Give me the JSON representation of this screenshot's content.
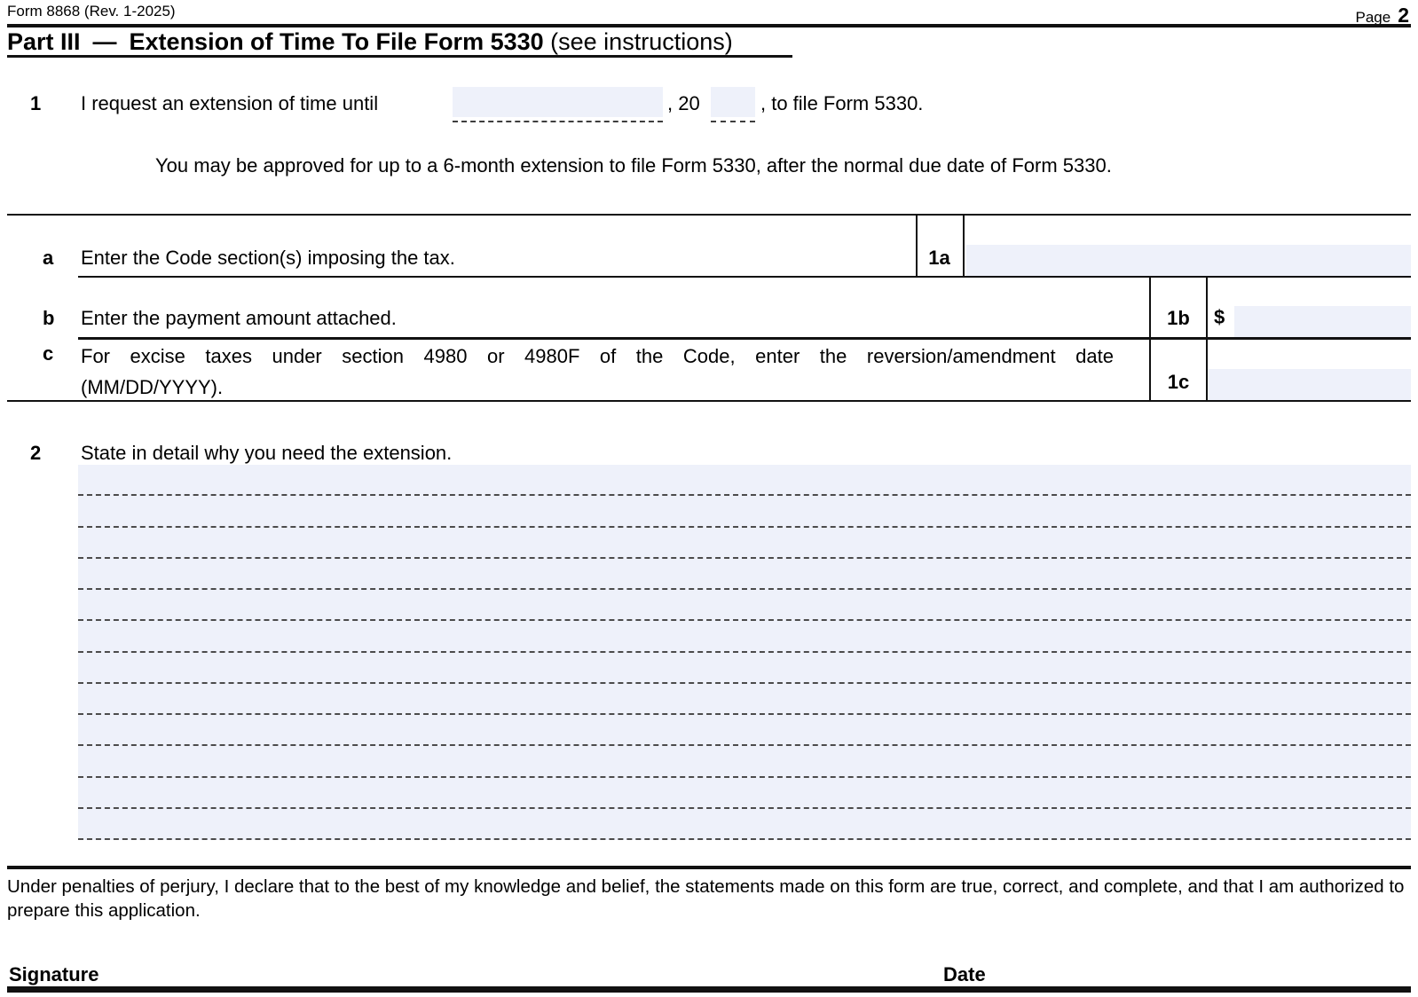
{
  "meta": {
    "form_id": "Form 8868 (Rev. 1-2025)",
    "page_label": "Page",
    "page_number": "2"
  },
  "header": {
    "part_label": "Part III",
    "dash": "—",
    "title": "Extension of Time To File Form 5330",
    "instructions_note": "(see instructions)"
  },
  "line1": {
    "number": "1",
    "text_before": "I request an extension of time until",
    "date_field_value": "",
    "mid_text": ", 20",
    "year_field_value": "",
    "text_after": ", to file Form 5330.",
    "note": "You may be approved for up to a 6-month extension to file Form 5330, after the normal due date of Form 5330."
  },
  "line_a": {
    "letter": "a",
    "label": "Enter the Code section(s) imposing the tax.",
    "tag": "1a",
    "value": ""
  },
  "line_b": {
    "letter": "b",
    "label": "Enter the payment amount attached.",
    "tag": "1b",
    "currency_symbol": "$",
    "value": ""
  },
  "line_c": {
    "letter": "c",
    "label_line1": "For excise taxes under section 4980 or 4980F of the Code, enter the reversion/amendment date",
    "label_line2": "(MM/DD/YYYY).",
    "tag": "1c",
    "value": ""
  },
  "line2": {
    "number": "2",
    "label": "State in detail why you need the extension.",
    "value": ""
  },
  "footer": {
    "perjury_statement": "Under penalties of perjury, I declare that to the best of my knowledge and belief, the statements made on this form are true, correct, and complete, and that I am authorized to prepare this application.",
    "signature_label": "Signature",
    "date_label": "Date"
  },
  "colors": {
    "field_background": "#eef1fa",
    "rule": "#111111"
  }
}
